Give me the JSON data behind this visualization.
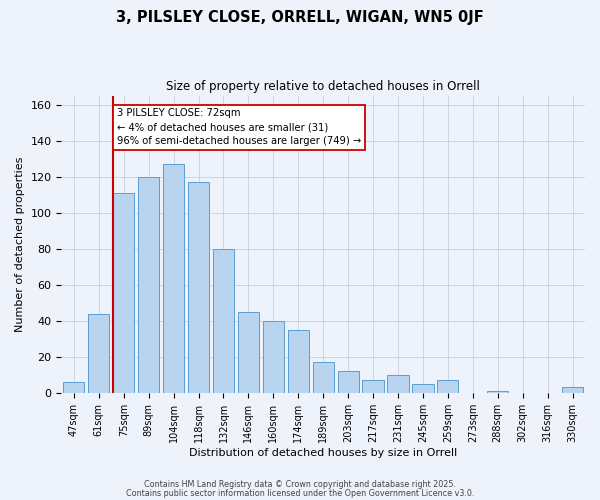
{
  "title": "3, PILSLEY CLOSE, ORRELL, WIGAN, WN5 0JF",
  "subtitle": "Size of property relative to detached houses in Orrell",
  "xlabel": "Distribution of detached houses by size in Orrell",
  "ylabel": "Number of detached properties",
  "bar_labels": [
    "47sqm",
    "61sqm",
    "75sqm",
    "89sqm",
    "104sqm",
    "118sqm",
    "132sqm",
    "146sqm",
    "160sqm",
    "174sqm",
    "189sqm",
    "203sqm",
    "217sqm",
    "231sqm",
    "245sqm",
    "259sqm",
    "273sqm",
    "288sqm",
    "302sqm",
    "316sqm",
    "330sqm"
  ],
  "bar_values": [
    6,
    44,
    111,
    120,
    127,
    117,
    80,
    45,
    40,
    35,
    17,
    12,
    7,
    10,
    5,
    7,
    0,
    1,
    0,
    0,
    3
  ],
  "bar_color": "#b8d4ee",
  "bar_edge_color": "#5a9fd4",
  "vline_color": "#cc0000",
  "annotation_title": "3 PILSLEY CLOSE: 72sqm",
  "annotation_line1": "← 4% of detached houses are smaller (31)",
  "annotation_line2": "96% of semi-detached houses are larger (749) →",
  "annotation_box_color": "#ffffff",
  "annotation_box_edge": "#cc0000",
  "ylim": [
    0,
    165
  ],
  "yticks": [
    0,
    20,
    40,
    60,
    80,
    100,
    120,
    140,
    160
  ],
  "background_color": "#eef2fb",
  "grid_color": "#c8cfe0",
  "footer1": "Contains HM Land Registry data © Crown copyright and database right 2025.",
  "footer2": "Contains public sector information licensed under the Open Government Licence v3.0."
}
